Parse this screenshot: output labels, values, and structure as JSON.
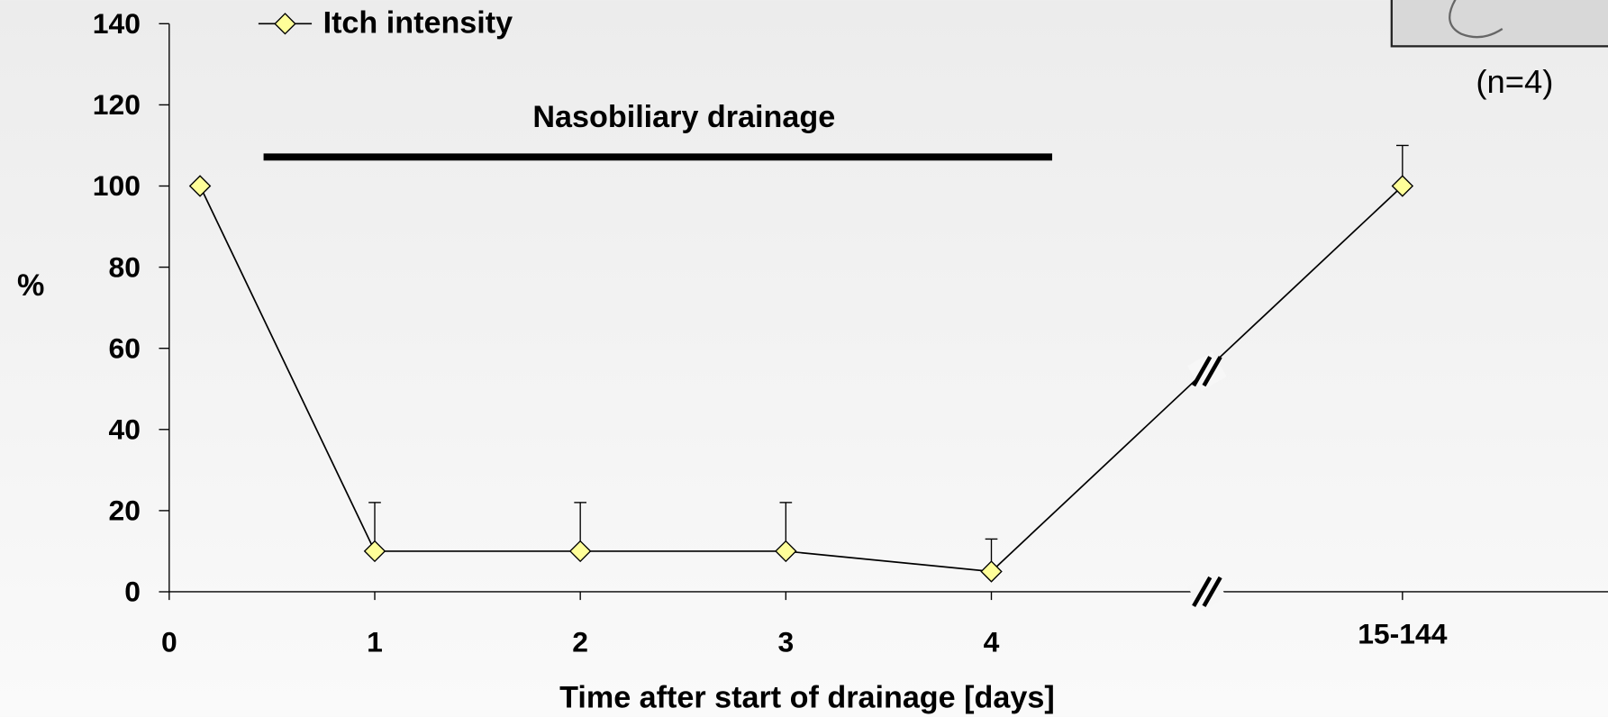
{
  "chart_data": {
    "type": "line",
    "y_label": "%",
    "x_label": "Time after start of drainage [days]",
    "annotations": [
      "Nasobiliary drainage",
      "(n=4)"
    ],
    "x": [
      0.15,
      1,
      2,
      3,
      4,
      6
    ],
    "series": [
      {
        "name": "Itch intensity",
        "color": "#ffff99",
        "values": [
          100,
          10,
          10,
          10,
          5,
          100
        ],
        "errors": [
          null,
          12,
          12,
          12,
          8,
          10
        ]
      }
    ],
    "xlim": [
      0,
      7
    ],
    "xticks": [
      0,
      1,
      2,
      3,
      4,
      {
        "value": 6,
        "label": "15-144"
      }
    ],
    "ylim": [
      0,
      140
    ],
    "yticks": [
      0,
      20,
      40,
      60,
      80,
      100,
      120,
      140
    ],
    "grid": false
  }
}
